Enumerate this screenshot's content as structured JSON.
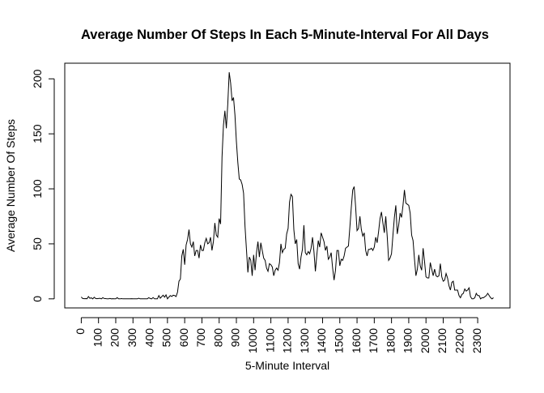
{
  "chart_data": {
    "type": "line",
    "title": "Average Number Of Steps In Each 5-Minute-Interval For All Days",
    "x_label": "5-Minute Interval",
    "y_label": "Average Number Of Steps",
    "color": "#000000",
    "ylim": [
      -8.24,
      214.2
    ],
    "yticks": [
      0,
      50,
      100,
      150,
      200
    ],
    "categories": [
      "0",
      null,
      null,
      null,
      null,
      null,
      null,
      null,
      null,
      null,
      null,
      null,
      "100",
      null,
      null,
      null,
      null,
      null,
      null,
      null,
      null,
      null,
      null,
      null,
      "200",
      null,
      null,
      null,
      null,
      null,
      null,
      null,
      null,
      null,
      null,
      null,
      "300",
      null,
      null,
      null,
      null,
      null,
      null,
      null,
      null,
      null,
      null,
      null,
      "400",
      null,
      null,
      null,
      null,
      null,
      null,
      null,
      null,
      null,
      null,
      null,
      "500",
      null,
      null,
      null,
      null,
      null,
      null,
      null,
      null,
      null,
      null,
      null,
      "600",
      null,
      null,
      null,
      null,
      null,
      null,
      null,
      null,
      null,
      null,
      null,
      "700",
      null,
      null,
      null,
      null,
      null,
      null,
      null,
      null,
      null,
      null,
      null,
      "800",
      null,
      null,
      null,
      null,
      null,
      null,
      null,
      null,
      null,
      null,
      null,
      "900",
      null,
      null,
      null,
      null,
      null,
      null,
      null,
      null,
      null,
      null,
      null,
      "1000",
      null,
      null,
      null,
      null,
      null,
      null,
      null,
      null,
      null,
      null,
      null,
      "1100",
      null,
      null,
      null,
      null,
      null,
      null,
      null,
      null,
      null,
      null,
      null,
      "1200",
      null,
      null,
      null,
      null,
      null,
      null,
      null,
      null,
      null,
      null,
      null,
      "1300",
      null,
      null,
      null,
      null,
      null,
      null,
      null,
      null,
      null,
      null,
      null,
      "1400",
      null,
      null,
      null,
      null,
      null,
      null,
      null,
      null,
      null,
      null,
      null,
      "1500",
      null,
      null,
      null,
      null,
      null,
      null,
      null,
      null,
      null,
      null,
      null,
      "1600",
      null,
      null,
      null,
      null,
      null,
      null,
      null,
      null,
      null,
      null,
      null,
      "1700",
      null,
      null,
      null,
      null,
      null,
      null,
      null,
      null,
      null,
      null,
      null,
      "1800",
      null,
      null,
      null,
      null,
      null,
      null,
      null,
      null,
      null,
      null,
      null,
      "1900",
      null,
      null,
      null,
      null,
      null,
      null,
      null,
      null,
      null,
      null,
      null,
      "2000",
      null,
      null,
      null,
      null,
      null,
      null,
      null,
      null,
      null,
      null,
      null,
      "2100",
      null,
      null,
      null,
      null,
      null,
      null,
      null,
      null,
      null,
      null,
      null,
      "2200",
      null,
      null,
      null,
      null,
      null,
      null,
      null,
      null,
      null,
      null,
      null,
      "2300",
      null,
      null,
      null,
      null,
      null,
      null,
      null,
      null,
      null,
      null,
      null
    ],
    "values": [
      1.7,
      0.3,
      0.1,
      0.2,
      0.1,
      2.1,
      0.5,
      0.9,
      0,
      1.5,
      0.3,
      0.1,
      0.3,
      0.5,
      0,
      1.1,
      0.3,
      0.2,
      0,
      0,
      0.4,
      0,
      0.1,
      0,
      0,
      1.1,
      0,
      0,
      0.2,
      0,
      0,
      0,
      0,
      0,
      0,
      0.1,
      0,
      0,
      0,
      0,
      0.6,
      0,
      0,
      0,
      0,
      0,
      0,
      1.1,
      0.3,
      0,
      1.2,
      0,
      0,
      0,
      3,
      0.6,
      2,
      3.3,
      1.5,
      3.6,
      0,
      1.6,
      3,
      2.2,
      3.3,
      3,
      2.1,
      6,
      16,
      18,
      39,
      45,
      31,
      49,
      54,
      63,
      50,
      47,
      52,
      39,
      44,
      44,
      37,
      49,
      44,
      44,
      51,
      55,
      50,
      51,
      56,
      44,
      52,
      69,
      58,
      56,
      73,
      68,
      129,
      158,
      171,
      155,
      177,
      206,
      196,
      180,
      183,
      167,
      143,
      124,
      109,
      108,
      104,
      96,
      66,
      45,
      24,
      38,
      35,
      21,
      40,
      26,
      42,
      52,
      38,
      51,
      44,
      37,
      35,
      28,
      25,
      32,
      31,
      29,
      21,
      26,
      28,
      26,
      33,
      50,
      42,
      45,
      46,
      59,
      64,
      88,
      95,
      93,
      63,
      50,
      54,
      32,
      27,
      38,
      45,
      67,
      42,
      40,
      43,
      41,
      46,
      56,
      43,
      25,
      40,
      53,
      47,
      60,
      56,
      52,
      44,
      48,
      36,
      38,
      42,
      28,
      17,
      26,
      44,
      44,
      30,
      36,
      35,
      39,
      46,
      47,
      48,
      65,
      83,
      99,
      102,
      84,
      62,
      64,
      75,
      63,
      57,
      60,
      44,
      39,
      45,
      45,
      46,
      44,
      47,
      56,
      51,
      61,
      73,
      79,
      69,
      60,
      75,
      57,
      35,
      37,
      41,
      58,
      74,
      85,
      59,
      67,
      78,
      74,
      85,
      99,
      87,
      86,
      85,
      78,
      58,
      53,
      36,
      21,
      27,
      40,
      30,
      26,
      46,
      34,
      20,
      19,
      19,
      33,
      27,
      21,
      27,
      21,
      20,
      21,
      32,
      20,
      16,
      17,
      23,
      19,
      12,
      8,
      15,
      16,
      8,
      8,
      8,
      3,
      1,
      4,
      5,
      9,
      7,
      8,
      10,
      2,
      0,
      0,
      1,
      5,
      3,
      3,
      0,
      1,
      1,
      2,
      3,
      5,
      3,
      1,
      0,
      1
    ]
  }
}
